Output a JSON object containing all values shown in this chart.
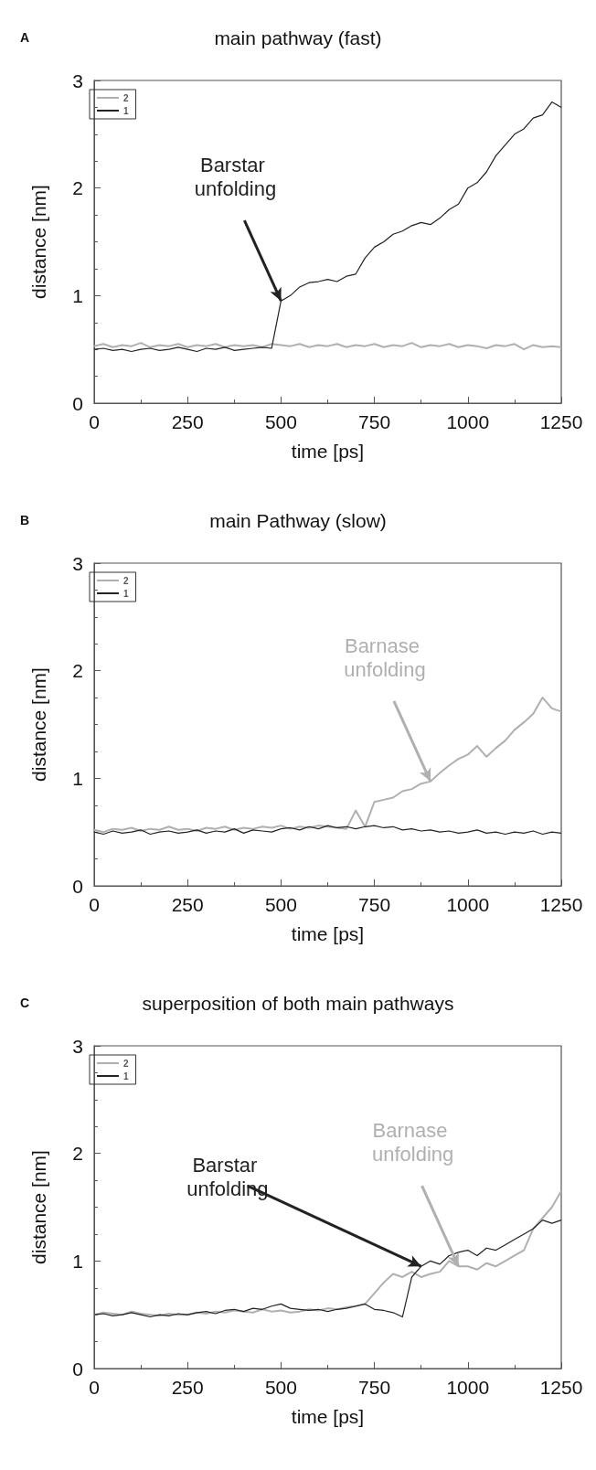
{
  "chart_data": [
    {
      "type": "line",
      "title": "main pathway (fast)",
      "xlabel": "time [ps]",
      "ylabel": "distance [nm]",
      "annotations": [
        "A",
        {
          "text": "Barstar unfolding",
          "x": 500,
          "y": 0.95
        }
      ],
      "x": [
        0,
        25,
        50,
        75,
        100,
        125,
        150,
        175,
        200,
        225,
        250,
        275,
        300,
        325,
        350,
        375,
        400,
        425,
        450,
        475,
        500,
        525,
        550,
        575,
        600,
        625,
        650,
        675,
        700,
        725,
        750,
        775,
        800,
        825,
        850,
        875,
        900,
        925,
        950,
        975,
        1000,
        1025,
        1050,
        1075,
        1100,
        1125,
        1150,
        1175,
        1200,
        1225,
        1250
      ],
      "xlim": [
        0,
        1250
      ],
      "xticks": [
        0,
        250,
        500,
        750,
        1000,
        1250
      ],
      "ylim": [
        0,
        3
      ],
      "yticks": [
        0,
        1,
        2,
        3
      ],
      "legend": "top left",
      "grid": false,
      "marker": "none",
      "line_style": "solid",
      "series": [
        {
          "name": "2",
          "color": "#b0b0b0",
          "values": [
            0.53,
            0.55,
            0.52,
            0.54,
            0.53,
            0.56,
            0.52,
            0.54,
            0.53,
            0.55,
            0.52,
            0.54,
            0.53,
            0.55,
            0.52,
            0.54,
            0.53,
            0.54,
            0.52,
            0.55,
            0.54,
            0.53,
            0.55,
            0.52,
            0.54,
            0.53,
            0.55,
            0.52,
            0.54,
            0.53,
            0.55,
            0.52,
            0.54,
            0.53,
            0.56,
            0.52,
            0.54,
            0.53,
            0.55,
            0.52,
            0.54,
            0.53,
            0.51,
            0.54,
            0.53,
            0.55,
            0.5,
            0.54,
            0.52,
            0.53,
            0.52
          ]
        },
        {
          "name": "1",
          "color": "#222222",
          "values": [
            0.5,
            0.51,
            0.49,
            0.5,
            0.48,
            0.5,
            0.51,
            0.49,
            0.5,
            0.52,
            0.5,
            0.48,
            0.51,
            0.5,
            0.52,
            0.49,
            0.5,
            0.51,
            0.52,
            0.51,
            0.95,
            1.0,
            1.08,
            1.12,
            1.13,
            1.15,
            1.13,
            1.18,
            1.2,
            1.35,
            1.45,
            1.5,
            1.57,
            1.6,
            1.65,
            1.68,
            1.66,
            1.72,
            1.8,
            1.85,
            2.0,
            2.05,
            2.15,
            2.3,
            2.4,
            2.5,
            2.55,
            2.65,
            2.68,
            2.8,
            2.75
          ]
        }
      ]
    },
    {
      "type": "line",
      "title": "main Pathway (slow)",
      "xlabel": "time [ps]",
      "ylabel": "distance [nm]",
      "annotations": [
        "B",
        {
          "text": "Barnase unfolding",
          "x": 900,
          "y": 0.97
        }
      ],
      "x": [
        0,
        25,
        50,
        75,
        100,
        125,
        150,
        175,
        200,
        225,
        250,
        275,
        300,
        325,
        350,
        375,
        400,
        425,
        450,
        475,
        500,
        525,
        550,
        575,
        600,
        625,
        650,
        675,
        700,
        725,
        750,
        775,
        800,
        825,
        850,
        875,
        900,
        925,
        950,
        975,
        1000,
        1025,
        1050,
        1075,
        1100,
        1125,
        1150,
        1175,
        1200,
        1225,
        1250
      ],
      "xlim": [
        0,
        1250
      ],
      "xticks": [
        0,
        250,
        500,
        750,
        1000,
        1250
      ],
      "ylim": [
        0,
        3
      ],
      "yticks": [
        0,
        1,
        2,
        3
      ],
      "legend": "top left",
      "grid": false,
      "marker": "none",
      "line_style": "solid",
      "series": [
        {
          "name": "2",
          "color": "#b0b0b0",
          "values": [
            0.52,
            0.5,
            0.53,
            0.52,
            0.54,
            0.51,
            0.53,
            0.52,
            0.55,
            0.52,
            0.53,
            0.51,
            0.54,
            0.53,
            0.55,
            0.52,
            0.54,
            0.53,
            0.55,
            0.54,
            0.56,
            0.53,
            0.55,
            0.54,
            0.56,
            0.55,
            0.54,
            0.53,
            0.7,
            0.55,
            0.78,
            0.8,
            0.82,
            0.88,
            0.9,
            0.95,
            0.97,
            1.05,
            1.12,
            1.18,
            1.22,
            1.3,
            1.2,
            1.28,
            1.35,
            1.45,
            1.52,
            1.6,
            1.75,
            1.65,
            1.62
          ]
        },
        {
          "name": "1",
          "color": "#222222",
          "values": [
            0.5,
            0.48,
            0.51,
            0.49,
            0.5,
            0.52,
            0.48,
            0.5,
            0.51,
            0.49,
            0.5,
            0.52,
            0.49,
            0.51,
            0.5,
            0.53,
            0.49,
            0.52,
            0.51,
            0.5,
            0.53,
            0.54,
            0.52,
            0.55,
            0.53,
            0.56,
            0.54,
            0.55,
            0.53,
            0.55,
            0.56,
            0.54,
            0.55,
            0.52,
            0.53,
            0.51,
            0.52,
            0.5,
            0.51,
            0.49,
            0.5,
            0.52,
            0.49,
            0.5,
            0.48,
            0.5,
            0.49,
            0.51,
            0.48,
            0.5,
            0.49
          ]
        }
      ]
    },
    {
      "type": "line",
      "title": "superposition of both main pathways",
      "xlabel": "time [ps]",
      "ylabel": "distance [nm]",
      "annotations": [
        "C",
        {
          "text": "Barstar unfolding",
          "x": 875,
          "y": 0.95
        },
        {
          "text": "Barnase unfolding",
          "x": 975,
          "y": 0.95
        }
      ],
      "x": [
        0,
        25,
        50,
        75,
        100,
        125,
        150,
        175,
        200,
        225,
        250,
        275,
        300,
        325,
        350,
        375,
        400,
        425,
        450,
        475,
        500,
        525,
        550,
        575,
        600,
        625,
        650,
        675,
        700,
        725,
        750,
        775,
        800,
        825,
        850,
        875,
        900,
        925,
        950,
        975,
        1000,
        1025,
        1050,
        1075,
        1100,
        1125,
        1150,
        1175,
        1200,
        1225,
        1250
      ],
      "xlim": [
        0,
        1250
      ],
      "xticks": [
        0,
        250,
        500,
        750,
        1000,
        1250
      ],
      "ylim": [
        0,
        3
      ],
      "yticks": [
        0,
        1,
        2,
        3
      ],
      "legend": "top left",
      "grid": false,
      "marker": "none",
      "line_style": "solid",
      "series": [
        {
          "name": "2",
          "color": "#b0b0b0",
          "values": [
            0.5,
            0.52,
            0.51,
            0.5,
            0.53,
            0.51,
            0.5,
            0.49,
            0.51,
            0.5,
            0.5,
            0.52,
            0.51,
            0.53,
            0.52,
            0.54,
            0.53,
            0.52,
            0.55,
            0.53,
            0.54,
            0.52,
            0.53,
            0.55,
            0.54,
            0.56,
            0.55,
            0.57,
            0.58,
            0.6,
            0.7,
            0.8,
            0.88,
            0.85,
            0.9,
            0.85,
            0.88,
            0.9,
            1.0,
            0.95,
            0.95,
            0.92,
            0.98,
            0.95,
            1.0,
            1.05,
            1.1,
            1.3,
            1.4,
            1.5,
            1.65
          ]
        },
        {
          "name": "1",
          "color": "#222222",
          "values": [
            0.5,
            0.51,
            0.49,
            0.5,
            0.52,
            0.5,
            0.48,
            0.5,
            0.49,
            0.51,
            0.5,
            0.52,
            0.53,
            0.51,
            0.54,
            0.55,
            0.53,
            0.56,
            0.55,
            0.58,
            0.6,
            0.56,
            0.55,
            0.54,
            0.55,
            0.53,
            0.55,
            0.56,
            0.58,
            0.6,
            0.55,
            0.54,
            0.52,
            0.48,
            0.85,
            0.95,
            1.0,
            0.97,
            1.05,
            1.08,
            1.1,
            1.05,
            1.12,
            1.1,
            1.15,
            1.2,
            1.25,
            1.3,
            1.38,
            1.35,
            1.38
          ]
        }
      ]
    }
  ]
}
